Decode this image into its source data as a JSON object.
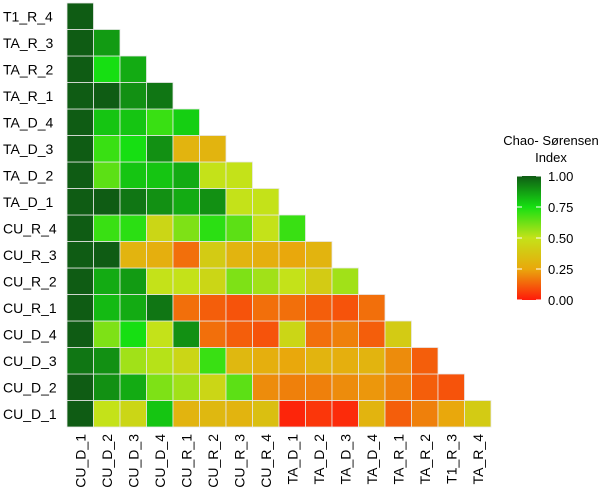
{
  "chart_data": {
    "type": "heatmap",
    "title": "",
    "xlabel": "",
    "ylabel": "",
    "x_categories": [
      "CU_D_1",
      "CU_D_2",
      "CU_D_3",
      "CU_D_4",
      "CU_R_1",
      "CU_R_2",
      "CU_R_3",
      "CU_R_4",
      "TA_D_1",
      "TA_D_2",
      "TA_D_3",
      "TA_D_4",
      "TA_R_1",
      "TA_R_2",
      "T1_R_3",
      "TA_R_4"
    ],
    "y_categories": [
      "T1_R_4",
      "TA_R_3",
      "TA_R_2",
      "TA_R_1",
      "TA_D_4",
      "TA_D_3",
      "TA_D_2",
      "TA_D_1",
      "CU_R_4",
      "CU_R_3",
      "CU_R_2",
      "CU_R_1",
      "CU_D_4",
      "CU_D_3",
      "CU_D_2",
      "CU_D_1"
    ],
    "lower_triangle": true,
    "rows": [
      {
        "y": "CU_D_1",
        "values": [
          1.0,
          0.5,
          0.45,
          0.8,
          0.3,
          0.32,
          0.3,
          0.35,
          0.02,
          0.05,
          0.03,
          0.3,
          0.12,
          0.18,
          0.25,
          0.4
        ]
      },
      {
        "y": "CU_D_2",
        "values": [
          1.0,
          0.9,
          0.85,
          0.6,
          0.55,
          0.45,
          0.65,
          0.2,
          0.18,
          0.18,
          0.2,
          0.22,
          0.18,
          0.12,
          0.1
        ]
      },
      {
        "y": "CU_D_3",
        "values": [
          0.95,
          0.9,
          0.55,
          0.52,
          0.45,
          0.7,
          0.32,
          0.28,
          0.25,
          0.3,
          0.28,
          0.3,
          0.2,
          0.12
        ]
      },
      {
        "y": "CU_D_4",
        "values": [
          1.0,
          0.6,
          0.75,
          0.5,
          0.9,
          0.15,
          0.12,
          0.1,
          0.45,
          0.15,
          0.18,
          0.12,
          0.4
        ]
      },
      {
        "y": "CU_R_1",
        "values": [
          1.0,
          0.82,
          0.85,
          0.95,
          0.15,
          0.12,
          0.1,
          0.15,
          0.15,
          0.12,
          0.1,
          0.15
        ]
      },
      {
        "y": "CU_R_2",
        "values": [
          1.0,
          0.85,
          0.88,
          0.5,
          0.5,
          0.45,
          0.6,
          0.55,
          0.5,
          0.4,
          0.55
        ]
      },
      {
        "y": "CU_R_3",
        "values": [
          1.0,
          1.0,
          0.3,
          0.28,
          0.15,
          0.4,
          0.3,
          0.28,
          0.25,
          0.3
        ]
      },
      {
        "y": "CU_R_4",
        "values": [
          1.0,
          0.7,
          0.72,
          0.45,
          0.6,
          0.72,
          0.65,
          0.5,
          0.7
        ]
      },
      {
        "y": "TA_D_1",
        "values": [
          1.0,
          1.0,
          0.95,
          0.9,
          0.85,
          0.9,
          0.5,
          0.5
        ]
      },
      {
        "y": "TA_D_2",
        "values": [
          1.0,
          0.65,
          0.8,
          0.8,
          0.85,
          0.5,
          0.5
        ]
      },
      {
        "y": "TA_D_3",
        "values": [
          1.0,
          0.7,
          0.75,
          0.9,
          0.3,
          0.3
        ]
      },
      {
        "y": "TA_D_4",
        "values": [
          1.0,
          0.8,
          0.8,
          0.7,
          0.78
        ]
      },
      {
        "y": "TA_R_1",
        "values": [
          1.0,
          1.0,
          0.9,
          0.95
        ]
      },
      {
        "y": "TA_R_2",
        "values": [
          1.0,
          0.75,
          0.85
        ]
      },
      {
        "y": "TA_R_3",
        "values": [
          1.0,
          0.88
        ]
      },
      {
        "y": "T1_R_4",
        "values": [
          1.0
        ]
      }
    ],
    "color_scale": {
      "min": 0.0,
      "max": 1.0,
      "stops": [
        {
          "value": 0.0,
          "color": "#ff1a0a"
        },
        {
          "value": 0.25,
          "color": "#e9a80c"
        },
        {
          "value": 0.5,
          "color": "#c4e219"
        },
        {
          "value": 0.75,
          "color": "#16df12"
        },
        {
          "value": 1.0,
          "color": "#0f5c14"
        }
      ]
    },
    "legend": {
      "title_line1": "Chao- Sørensen",
      "title_line2": "Index",
      "ticks": [
        "1.00",
        "0.75",
        "0.50",
        "0.25",
        "0.00"
      ],
      "position": "right"
    }
  }
}
